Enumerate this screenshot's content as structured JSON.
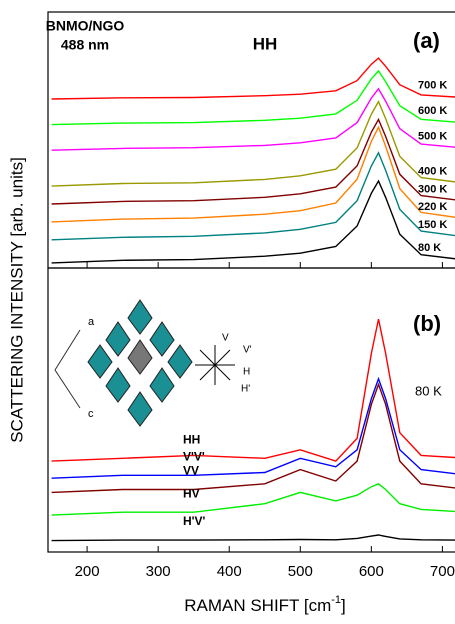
{
  "chart_data": [
    {
      "type": "line",
      "ylabel": "SCATTERING INTENSITY [arb. units]",
      "sample": "BNMO/NGO",
      "wavelength": "488 nm",
      "polarization": "HH",
      "panel": "(a)",
      "xlim": [
        145,
        736
      ],
      "ylim": [
        0,
        100
      ],
      "xticks": [
        200,
        300,
        400,
        500,
        600,
        700
      ],
      "x": [
        150,
        250,
        350,
        450,
        500,
        550,
        580,
        600,
        610,
        620,
        640,
        670,
        736
      ],
      "series": [
        {
          "name": "700 K",
          "color": "#ff0000",
          "values": [
            66,
            66.5,
            66.6,
            67.3,
            67.9,
            69.2,
            73.2,
            79.6,
            82,
            78.8,
            71.6,
            67.6,
            66.5
          ]
        },
        {
          "name": "600 K",
          "color": "#00ff00",
          "values": [
            56,
            56.6,
            56.8,
            57.7,
            58.5,
            60.2,
            65.5,
            73.9,
            77,
            72.8,
            63.4,
            58.1,
            56.6
          ]
        },
        {
          "name": "500 K",
          "color": "#ff00ff",
          "values": [
            46,
            46.7,
            47,
            47.9,
            48.9,
            50.8,
            56.8,
            66.4,
            70,
            65.2,
            54.4,
            48.4,
            46.7
          ]
        },
        {
          "name": "400 K",
          "color": "#999900",
          "values": [
            32,
            33,
            33.3,
            34.6,
            36,
            38.6,
            46.9,
            60.1,
            65,
            58.4,
            43.6,
            35.3,
            33
          ]
        },
        {
          "name": "300 K",
          "color": "#800000",
          "values": [
            25,
            26,
            26.3,
            27.6,
            29,
            31.6,
            39.9,
            53.1,
            58,
            51.4,
            36.6,
            28.3,
            26
          ]
        },
        {
          "name": "220 K",
          "color": "#ff8000",
          "values": [
            18,
            19.1,
            19.5,
            21,
            22.4,
            25.4,
            34.7,
            49.5,
            55,
            47.6,
            31,
            21.7,
            19.1
          ]
        },
        {
          "name": "150 K",
          "color": "#008080",
          "values": [
            11,
            12,
            12.4,
            13.7,
            15.1,
            17.8,
            26.3,
            39.9,
            45,
            38.2,
            22.9,
            14.4,
            12
          ]
        },
        {
          "name": "80 K",
          "color": "#000000",
          "values": [
            2,
            3,
            3.3,
            4.6,
            5.8,
            8.4,
            16.4,
            29.2,
            34,
            27.6,
            13.2,
            5.2,
            3
          ]
        }
      ]
    },
    {
      "type": "line",
      "xlabel": "RAMAN SHIFT [cm",
      "xlabel_sup": "-1",
      "xlabel_end": "]",
      "panel": "(b)",
      "temperature": "80 K",
      "inset_labels": [
        "a",
        "c",
        "V",
        "V'",
        "H",
        "H'"
      ],
      "xlim": [
        145,
        736
      ],
      "ylim": [
        0,
        100
      ],
      "xticks": [
        200,
        300,
        400,
        500,
        600,
        700
      ],
      "x": [
        150,
        250,
        350,
        450,
        500,
        550,
        580,
        600,
        610,
        620,
        640,
        670,
        736
      ],
      "series": [
        {
          "name": "HH",
          "color": "#ff0000",
          "values": [
            32,
            33,
            34,
            33,
            36,
            32,
            40,
            70,
            82,
            70,
            42,
            34,
            33
          ]
        },
        {
          "name": "V'V'",
          "color": "#0000ff",
          "values": [
            26,
            27,
            27,
            28,
            33,
            30,
            36,
            54,
            61,
            54,
            36,
            29,
            27
          ]
        },
        {
          "name": "VV",
          "color": "#800000",
          "values": [
            21,
            22,
            22,
            24,
            29,
            25,
            32,
            52,
            59,
            52,
            32,
            24,
            22
          ]
        },
        {
          "name": "HV",
          "color": "#00ee00",
          "values": [
            13,
            14,
            14,
            17,
            21,
            18,
            20,
            23,
            24,
            22,
            17,
            15,
            14
          ]
        },
        {
          "name": "H'V'",
          "color": "#000000",
          "values": [
            4,
            4.2,
            4.2,
            4.3,
            4.4,
            4.3,
            4.8,
            5.6,
            6,
            5.5,
            4.6,
            4.3,
            4.2
          ]
        }
      ]
    }
  ]
}
